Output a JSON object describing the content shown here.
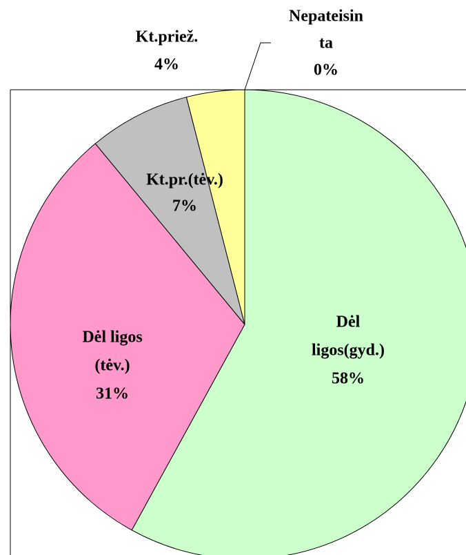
{
  "chart_data": {
    "type": "pie",
    "categories": [
      [
        "Dėl",
        "ligos(gyd.)"
      ],
      [
        "Dėl ligos",
        "(tėv.)"
      ],
      [
        "Kt.pr.(tėv.)"
      ],
      [
        "Kt.priež."
      ],
      [
        "Nepateisin",
        "ta"
      ]
    ],
    "values": [
      58,
      31,
      7,
      4,
      0
    ],
    "value_labels": [
      "58%",
      "31%",
      "7%",
      "4%",
      "0%"
    ],
    "colors": [
      "#ccffcc",
      "#ff99cc",
      "#c0c0c0",
      "#ffff99",
      "#9999ff"
    ]
  }
}
